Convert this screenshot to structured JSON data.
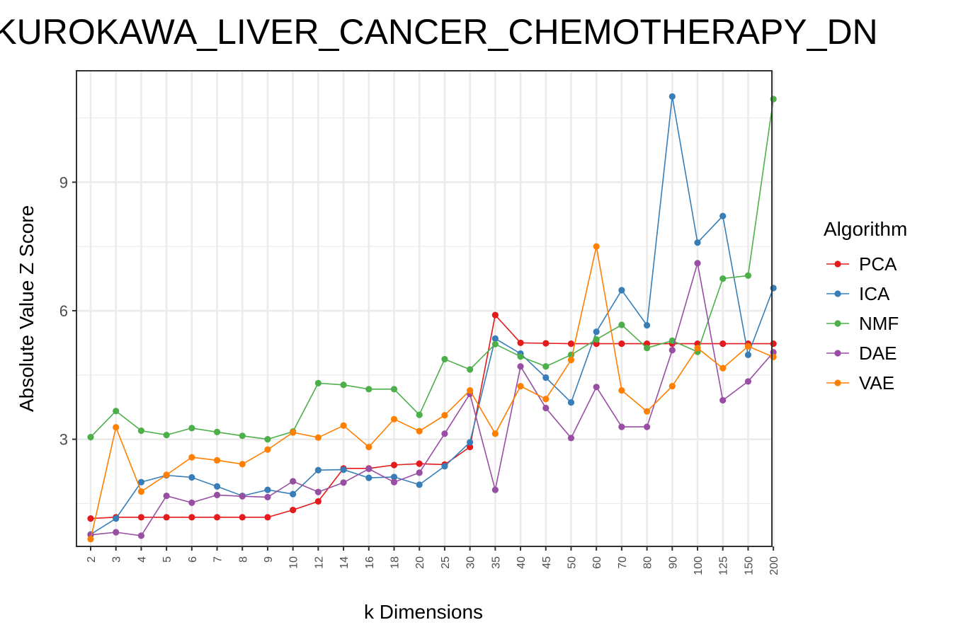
{
  "chart_data": {
    "type": "line",
    "title": "KUROKAWA_LIVER_CANCER_CHEMOTHERAPY_DN",
    "xlabel": "k Dimensions",
    "ylabel": "Absolute Value Z Score",
    "categories": [
      "2",
      "3",
      "4",
      "5",
      "6",
      "7",
      "8",
      "9",
      "10",
      "12",
      "14",
      "16",
      "18",
      "20",
      "25",
      "30",
      "35",
      "40",
      "45",
      "50",
      "60",
      "70",
      "80",
      "90",
      "100",
      "125",
      "150",
      "200"
    ],
    "ylim": [
      0.5,
      11.6
    ],
    "yticks": [
      3,
      6,
      9
    ],
    "grid": true,
    "legend": {
      "title": "Algorithm",
      "position": "right"
    },
    "series": [
      {
        "name": "PCA",
        "color": "#e41a1c",
        "values": [
          1.15,
          1.18,
          1.18,
          1.18,
          1.18,
          1.18,
          1.18,
          1.18,
          1.35,
          1.55,
          2.32,
          2.32,
          2.4,
          2.43,
          2.41,
          2.82,
          5.9,
          5.25,
          5.24,
          5.23,
          5.23,
          5.23,
          5.23,
          5.23,
          5.23,
          5.23,
          5.23,
          5.23
        ]
      },
      {
        "name": "ICA",
        "color": "#377eb8",
        "values": [
          0.78,
          1.15,
          2.0,
          2.16,
          2.11,
          1.9,
          1.68,
          1.82,
          1.72,
          2.28,
          2.29,
          2.1,
          2.12,
          1.94,
          2.37,
          2.93,
          5.35,
          5.0,
          4.44,
          3.86,
          5.51,
          6.48,
          5.66,
          11.0,
          7.59,
          8.21,
          4.97,
          6.53
        ]
      },
      {
        "name": "NMF",
        "color": "#4daf4a",
        "values": [
          3.05,
          3.66,
          3.2,
          3.1,
          3.26,
          3.17,
          3.08,
          3.0,
          3.18,
          4.31,
          4.27,
          4.17,
          4.17,
          3.57,
          4.87,
          4.63,
          5.22,
          4.93,
          4.7,
          4.97,
          5.33,
          5.67,
          5.13,
          5.3,
          5.04,
          6.75,
          6.82,
          10.94
        ]
      },
      {
        "name": "DAE",
        "color": "#984ea3",
        "values": [
          0.77,
          0.83,
          0.75,
          1.68,
          1.52,
          1.7,
          1.67,
          1.65,
          2.02,
          1.77,
          1.99,
          2.31,
          2.0,
          2.22,
          3.13,
          4.06,
          1.82,
          4.7,
          3.73,
          3.03,
          4.22,
          3.29,
          3.29,
          5.08,
          7.11,
          3.91,
          4.35,
          5.03
        ]
      },
      {
        "name": "VAE",
        "color": "#ff7f00",
        "values": [
          0.67,
          3.28,
          1.78,
          2.17,
          2.58,
          2.51,
          2.42,
          2.76,
          3.16,
          3.04,
          3.32,
          2.82,
          3.47,
          3.19,
          3.56,
          4.14,
          3.13,
          4.24,
          3.94,
          4.85,
          7.5,
          4.14,
          3.65,
          4.24,
          5.13,
          4.66,
          5.17,
          4.92
        ]
      }
    ]
  }
}
